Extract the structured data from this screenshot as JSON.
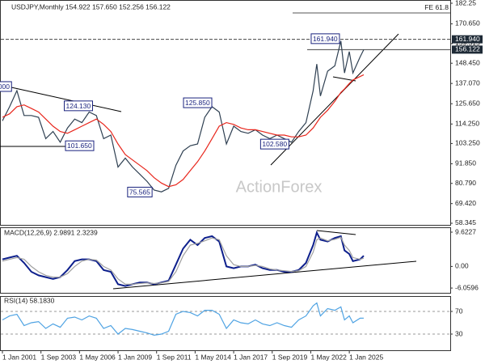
{
  "chart_data": [
    {
      "type": "line",
      "title": "USDJPY,Monthly  154.922 157.650 152.256 156.122",
      "watermark": "ActionForex",
      "x": [
        "2001-01",
        "2001-07",
        "2002-01",
        "2002-07",
        "2003-01",
        "2003-07",
        "2004-01",
        "2004-07",
        "2005-01",
        "2005-07",
        "2006-01",
        "2006-07",
        "2007-01",
        "2007-07",
        "2008-01",
        "2008-07",
        "2009-01",
        "2009-07",
        "2010-01",
        "2010-07",
        "2011-01",
        "2011-07",
        "2012-01",
        "2012-07",
        "2013-01",
        "2013-07",
        "2014-01",
        "2014-07",
        "2015-01",
        "2015-07",
        "2016-01",
        "2016-07",
        "2017-01",
        "2017-07",
        "2018-01",
        "2018-07",
        "2019-01",
        "2019-07",
        "2020-01",
        "2020-07",
        "2021-01",
        "2021-07",
        "2022-01",
        "2022-07",
        "2022-10",
        "2023-01",
        "2023-07",
        "2024-01",
        "2024-06",
        "2024-09",
        "2025-01",
        "2025-04",
        "2025-10",
        "2026-01"
      ],
      "series": [
        {
          "name": "USDJPY",
          "color": "#2f4052",
          "values": [
            116,
            124,
            133,
            119,
            119,
            118,
            106,
            110,
            104,
            112,
            117,
            115,
            121,
            119,
            106,
            108,
            90,
            95,
            90,
            86,
            82,
            77,
            76,
            78,
            91,
            99,
            102,
            103,
            118,
            124,
            121,
            103,
            113,
            110,
            109,
            111,
            108,
            106,
            108,
            106,
            104,
            110,
            115,
            133,
            148,
            130,
            144,
            147,
            161,
            143,
            155,
            143,
            152,
            156.122
          ]
        },
        {
          "name": "MA",
          "color": "#e8261c",
          "values": [
            118,
            120,
            124,
            125,
            123,
            121,
            117,
            113,
            110,
            109,
            111,
            113,
            115,
            117,
            114,
            110,
            103,
            97,
            94,
            91,
            88,
            84,
            81,
            79,
            80,
            83,
            88,
            93,
            99,
            106,
            113,
            115,
            114,
            112,
            111,
            111,
            110,
            109,
            108,
            108,
            107,
            107,
            108,
            112,
            115,
            118,
            122,
            127,
            132,
            134,
            137,
            139,
            141,
            142
          ]
        }
      ],
      "ylim": [
        57.43,
        183.62
      ],
      "yticks": [
        182.25,
        {
          "value": 170.65,
          "label": "170.650"
        },
        159.515,
        {
          "value": 148.45,
          "label": "148.450"
        },
        {
          "value": 137.07,
          "label": "137.070"
        },
        {
          "value": 125.65,
          "label": "125.650"
        },
        {
          "value": 114.25,
          "label": "114.250"
        },
        {
          "value": 103.25,
          "label": "103.250"
        },
        {
          "value": 91.85,
          "label": "91.850"
        },
        {
          "value": 80.79,
          "label": "80.790"
        },
        {
          "value": 69.42,
          "label": "69.420"
        },
        58.345
      ],
      "annotations": [
        {
          "value": 135,
          "label": "135.000",
          "x": "2001-01"
        },
        {
          "value": 124.13,
          "label": "124.130",
          "x": "2006-04"
        },
        {
          "value": 101.65,
          "label": "101.650",
          "x": "2006-05"
        },
        {
          "value": 75.565,
          "label": "75.565",
          "x": "2010-07"
        },
        {
          "value": 125.85,
          "label": "125.850",
          "x": "2014-07"
        },
        {
          "value": 102.58,
          "label": "102.580",
          "x": "2019-11"
        },
        {
          "value": 161.94,
          "label": "161.940",
          "x": "2023-05"
        }
      ],
      "markers": [
        {
          "value": 161.94,
          "label": "161.940"
        },
        {
          "value": 156.122,
          "label": "156.122"
        }
      ],
      "fe_level": {
        "text": "FE 61.8",
        "value": 176.8
      }
    },
    {
      "type": "line",
      "title": "MACD(12,26,9) 2.9891 2.3239",
      "x": [
        "2001-01",
        "2001-07",
        "2002-01",
        "2002-07",
        "2003-01",
        "2003-07",
        "2004-01",
        "2004-07",
        "2005-01",
        "2005-07",
        "2006-01",
        "2006-07",
        "2007-01",
        "2007-07",
        "2008-01",
        "2008-07",
        "2009-01",
        "2009-07",
        "2010-01",
        "2010-07",
        "2011-01",
        "2011-07",
        "2012-01",
        "2012-07",
        "2013-01",
        "2013-07",
        "2014-01",
        "2014-07",
        "2015-01",
        "2015-07",
        "2016-01",
        "2016-07",
        "2017-01",
        "2017-07",
        "2018-01",
        "2018-07",
        "2019-01",
        "2019-07",
        "2020-01",
        "2020-07",
        "2021-01",
        "2021-07",
        "2022-01",
        "2022-07",
        "2022-10",
        "2023-01",
        "2023-07",
        "2024-01",
        "2024-06",
        "2024-09",
        "2025-01",
        "2025-04",
        "2025-10",
        "2026-01"
      ],
      "series": [
        {
          "name": "MACD",
          "color": "#0d1f8c",
          "values": [
            2,
            2.5,
            3,
            1,
            -1.5,
            -2.5,
            -3,
            -3.5,
            -3,
            -1,
            1.5,
            2,
            2,
            1.5,
            -1,
            -1.5,
            -5,
            -5.5,
            -5,
            -4.5,
            -4.5,
            -5,
            -4.5,
            -4,
            0.5,
            5,
            7.5,
            6,
            8,
            8.5,
            7,
            0,
            -0.5,
            0,
            0,
            0.5,
            -0.5,
            -1,
            -1,
            -1.5,
            -1.5,
            -1,
            1,
            6,
            9.5,
            7.5,
            7,
            8,
            8.5,
            4.5,
            3.5,
            1.5,
            2,
            2.9891
          ]
        },
        {
          "name": "Signal",
          "color": "#a0a0a0",
          "values": [
            1.5,
            2,
            2.5,
            2,
            0,
            -1.5,
            -2.5,
            -3,
            -3,
            -2,
            0,
            1.5,
            2,
            1.8,
            0,
            -1,
            -3.5,
            -5,
            -5,
            -4.8,
            -4.6,
            -4.8,
            -4.6,
            -4.2,
            -1.5,
            3,
            6,
            6.5,
            7.2,
            8,
            7.5,
            3,
            0.5,
            0,
            0,
            0.3,
            0,
            -0.7,
            -1,
            -1.2,
            -1.4,
            -1.2,
            0,
            4,
            7.5,
            8,
            7.2,
            7.6,
            8.2,
            6,
            4.5,
            2.5,
            2,
            2.3239
          ]
        }
      ],
      "ylim": [
        -7.4,
        10.76
      ],
      "yticks": [
        9.6227,
        {
          "value": 0,
          "label": "0.00"
        },
        -6.0596
      ]
    },
    {
      "type": "line",
      "title": "RSI(14) 58.1830",
      "grid": true,
      "x": [
        "2001-01",
        "2001-07",
        "2002-01",
        "2002-07",
        "2003-01",
        "2003-07",
        "2004-01",
        "2004-07",
        "2005-01",
        "2005-07",
        "2006-01",
        "2006-07",
        "2007-01",
        "2007-07",
        "2008-01",
        "2008-07",
        "2009-01",
        "2009-07",
        "2010-01",
        "2010-07",
        "2011-01",
        "2011-07",
        "2012-01",
        "2012-07",
        "2013-01",
        "2013-07",
        "2014-01",
        "2014-07",
        "2015-01",
        "2015-07",
        "2016-01",
        "2016-07",
        "2017-01",
        "2017-07",
        "2018-01",
        "2018-07",
        "2019-01",
        "2019-07",
        "2020-01",
        "2020-07",
        "2021-01",
        "2021-07",
        "2022-01",
        "2022-07",
        "2022-10",
        "2023-01",
        "2023-07",
        "2024-01",
        "2024-06",
        "2024-09",
        "2025-01",
        "2025-04",
        "2025-10",
        "2026-01"
      ],
      "series": [
        {
          "name": "RSI",
          "color": "#4fa3e3",
          "values": [
            55,
            62,
            65,
            45,
            50,
            52,
            40,
            48,
            42,
            58,
            60,
            55,
            62,
            58,
            40,
            45,
            30,
            40,
            38,
            35,
            32,
            28,
            30,
            35,
            65,
            70,
            68,
            62,
            72,
            72,
            65,
            40,
            55,
            50,
            48,
            55,
            48,
            45,
            50,
            45,
            42,
            55,
            62,
            80,
            85,
            62,
            75,
            72,
            78,
            55,
            62,
            50,
            58,
            58.183
          ]
        }
      ],
      "ylim": [
        0,
        100
      ],
      "yticks": [
        70,
        30
      ],
      "xticks": [
        {
          "value": "2001-01",
          "label": "1 Jan 2001"
        },
        {
          "value": "2003-09",
          "label": "1 Sep 2003"
        },
        {
          "value": "2006-05",
          "label": "1 May 2006"
        },
        {
          "value": "2009-01",
          "label": "1 Jan 2009"
        },
        {
          "value": "2011-09",
          "label": "1 Sep 2011"
        },
        {
          "value": "2014-05",
          "label": "1 May 2014"
        },
        {
          "value": "2017-01",
          "label": "1 Jan 2017"
        },
        {
          "value": "2019-09",
          "label": "1 Sep 2019"
        },
        {
          "value": "2022-05",
          "label": "1 May 2022"
        },
        {
          "value": "2025-01",
          "label": "1 Jan 2025"
        }
      ]
    }
  ]
}
